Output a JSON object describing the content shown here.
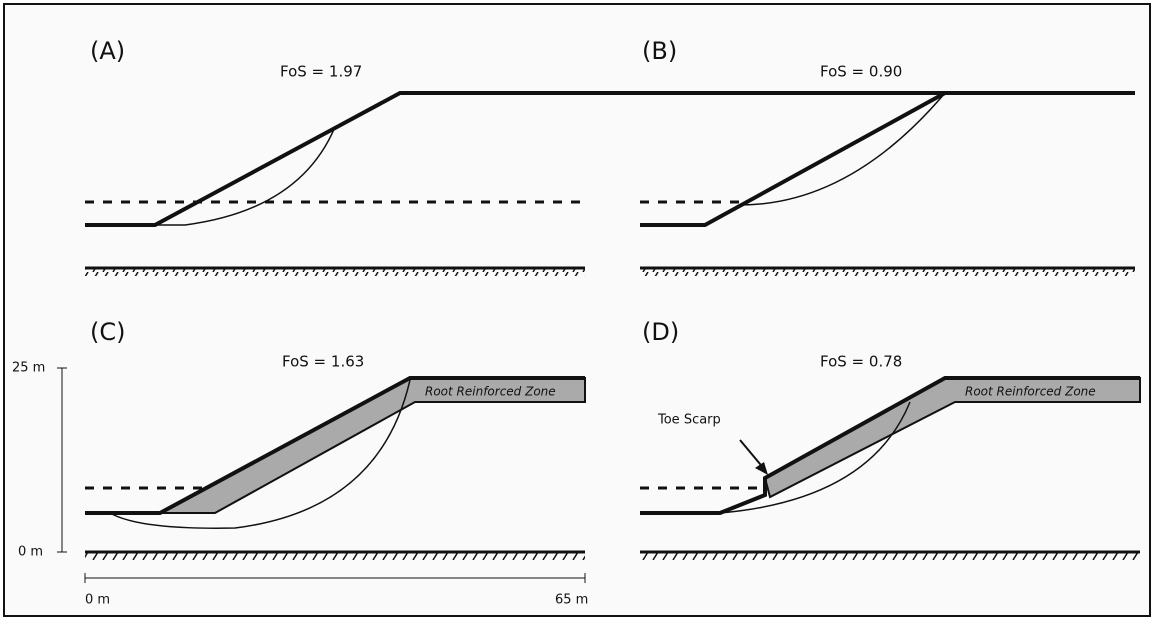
{
  "panels": [
    {
      "label": "(A)",
      "fos": "FoS = 1.97"
    },
    {
      "label": "(B)",
      "fos": "FoS = 0.90"
    },
    {
      "label": "(C)",
      "fos": "FoS = 1.63",
      "zone": "Root Reinforced Zone"
    },
    {
      "label": "(D)",
      "fos": "FoS = 0.78",
      "zone": "Root Reinforced Zone",
      "annotation": "Toe Scarp"
    }
  ],
  "scale": {
    "vertical_top": "25 m",
    "vertical_bottom": "0 m",
    "horizontal_left": "0 m",
    "horizontal_right": "65 m"
  }
}
